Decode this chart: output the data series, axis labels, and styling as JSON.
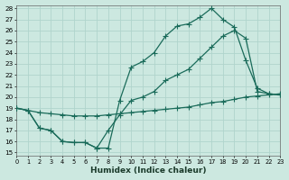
{
  "xlabel": "Humidex (Indice chaleur)",
  "bg_color": "#cce8e0",
  "grid_color": "#b0d4cc",
  "line_color": "#1a6b5a",
  "xlim": [
    0,
    23
  ],
  "ylim": [
    15,
    28
  ],
  "xticks": [
    0,
    1,
    2,
    3,
    4,
    5,
    6,
    7,
    8,
    9,
    10,
    11,
    12,
    13,
    14,
    15,
    16,
    17,
    18,
    19,
    20,
    21,
    22,
    23
  ],
  "yticks": [
    15,
    16,
    17,
    18,
    19,
    20,
    21,
    22,
    23,
    24,
    25,
    26,
    27,
    28
  ],
  "line1_x": [
    0,
    1,
    2,
    3,
    4,
    5,
    6,
    7,
    8,
    9,
    10,
    11,
    12,
    13,
    14,
    15,
    16,
    17,
    18,
    19,
    20,
    21,
    22,
    23
  ],
  "line1_y": [
    19.0,
    18.8,
    18.6,
    18.5,
    18.4,
    18.3,
    18.3,
    18.3,
    18.4,
    18.5,
    18.6,
    18.7,
    18.8,
    18.9,
    19.0,
    19.1,
    19.3,
    19.5,
    19.6,
    19.8,
    20.0,
    20.1,
    20.2,
    20.3
  ],
  "line2_x": [
    0,
    1,
    2,
    3,
    4,
    5,
    6,
    7,
    8,
    9,
    10,
    11,
    12,
    13,
    14,
    15,
    16,
    17,
    18,
    19,
    20,
    21,
    22,
    23
  ],
  "line2_y": [
    19.0,
    18.8,
    17.2,
    17.0,
    16.0,
    15.9,
    15.9,
    15.4,
    17.0,
    18.4,
    19.7,
    20.0,
    20.5,
    21.5,
    22.0,
    22.5,
    23.5,
    24.5,
    25.5,
    26.0,
    25.3,
    20.5,
    20.3,
    20.2
  ],
  "line3_x": [
    0,
    1,
    2,
    3,
    4,
    5,
    6,
    7,
    8,
    9,
    10,
    11,
    12,
    13,
    14,
    15,
    16,
    17,
    18,
    19,
    20,
    21,
    22,
    23
  ],
  "line3_y": [
    19.0,
    18.8,
    17.2,
    17.0,
    16.0,
    15.9,
    15.9,
    15.4,
    15.4,
    19.7,
    22.7,
    23.2,
    24.0,
    25.5,
    26.4,
    26.6,
    27.2,
    28.0,
    27.0,
    26.3,
    23.3,
    20.8,
    20.3,
    20.2
  ]
}
